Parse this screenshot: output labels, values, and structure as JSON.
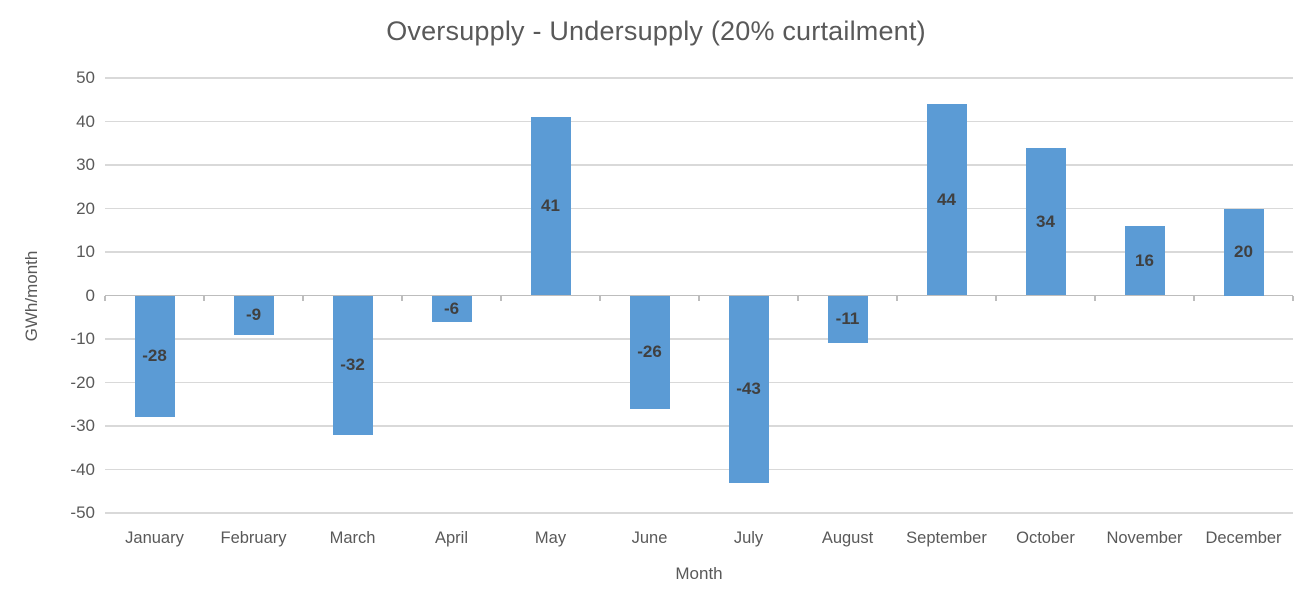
{
  "chart_data": {
    "type": "bar",
    "title": "Oversupply - Undersupply (20% curtailment)",
    "xlabel": "Month",
    "ylabel": "GWh/month",
    "categories": [
      "January",
      "February",
      "March",
      "April",
      "May",
      "June",
      "July",
      "August",
      "September",
      "October",
      "November",
      "December"
    ],
    "values": [
      -28,
      -9,
      -32,
      -6,
      41,
      -26,
      -43,
      -11,
      44,
      34,
      16,
      20
    ],
    "ylim": [
      -50,
      50
    ],
    "ytick_step": 10,
    "grid": true,
    "legend": "none",
    "colors": {
      "bar": "#5B9BD5",
      "data_label": "#404040",
      "axis_text": "#595959",
      "title_text": "#595959",
      "gridline": "#D9D9D9",
      "axis_line": "#BDBDBD"
    }
  }
}
